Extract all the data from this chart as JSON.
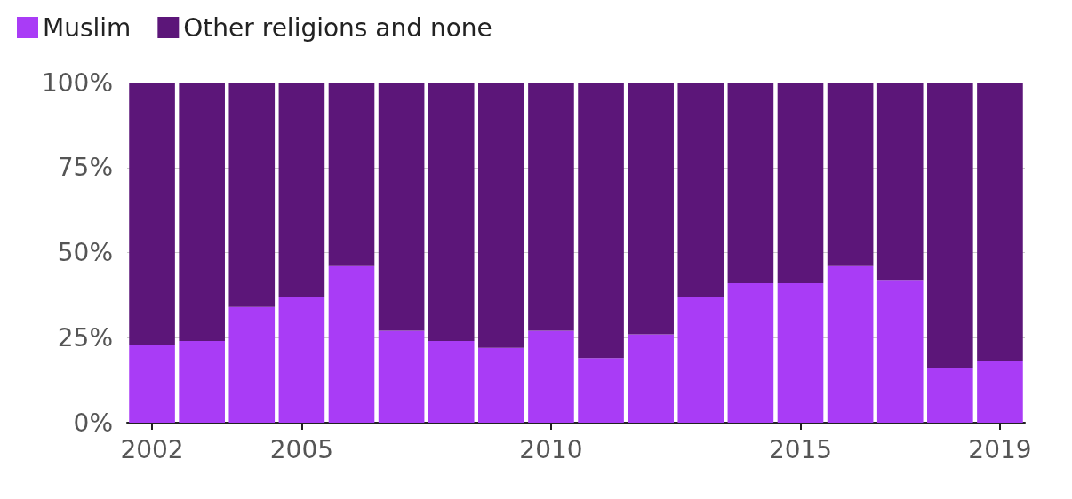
{
  "chart_data": {
    "type": "bar",
    "stacked": true,
    "categories": [
      "2002",
      null,
      null,
      "2005",
      null,
      null,
      null,
      null,
      "2010",
      null,
      null,
      null,
      null,
      "2015",
      null,
      null,
      null,
      "2019"
    ],
    "series": [
      {
        "name": "Muslim",
        "color": "#a93cf6",
        "values": [
          23,
          24,
          34,
          37,
          46,
          27,
          24,
          22,
          27,
          19,
          26,
          37,
          41,
          41,
          46,
          42,
          16,
          18
        ]
      },
      {
        "name": "Other religions and none",
        "color": "#5c1679",
        "values": [
          77,
          76,
          66,
          63,
          54,
          73,
          76,
          78,
          73,
          81,
          74,
          63,
          59,
          59,
          54,
          58,
          84,
          82
        ]
      }
    ],
    "ylim": [
      0,
      100
    ],
    "yticks": [
      {
        "value": 0,
        "label": "0%"
      },
      {
        "value": 25,
        "label": "25%"
      },
      {
        "value": 50,
        "label": "50%"
      },
      {
        "value": 75,
        "label": "75%"
      },
      {
        "value": 100,
        "label": "100%"
      }
    ],
    "grid": "y",
    "legend": "top left"
  }
}
